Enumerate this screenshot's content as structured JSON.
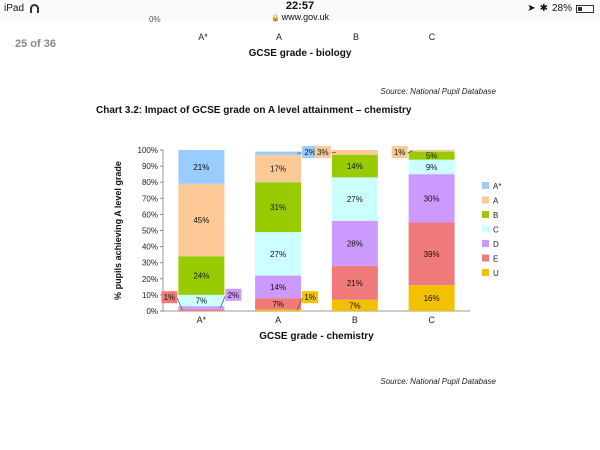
{
  "status_bar": {
    "device": "iPad",
    "time": "22:57",
    "url": "www.gov.uk",
    "battery": "28%",
    "battery_level": 0.28
  },
  "page_counter": "25 of 36",
  "previous_chart": {
    "cut_tick": "0%",
    "categories": [
      "A*",
      "A",
      "B",
      "C"
    ],
    "xlabel": "GCSE grade - biology",
    "source": "Source: National Pupil Database"
  },
  "chart_title": "Chart 3.2: Impact of GCSE grade on A level attainment – chemistry",
  "source": "Source: National Pupil Database",
  "chart_data": {
    "type": "bar",
    "stacked": true,
    "title": "Chart 3.2: Impact of GCSE grade on A level attainment – chemistry",
    "xlabel": "GCSE grade - chemistry",
    "ylabel": "% pupils achieving A level grade",
    "categories": [
      "A*",
      "A",
      "B",
      "C"
    ],
    "ylim": [
      0,
      100
    ],
    "yticks": [
      "0%",
      "10%",
      "20%",
      "30%",
      "40%",
      "50%",
      "60%",
      "70%",
      "80%",
      "90%",
      "100%"
    ],
    "legend_position": "right",
    "series": [
      {
        "name": "U",
        "color": "#f2c200",
        "values": [
          0,
          1,
          7,
          16
        ],
        "labels": [
          "",
          "1%",
          "7%",
          "16%"
        ]
      },
      {
        "name": "E",
        "color": "#f07a7a",
        "values": [
          1,
          7,
          21,
          39
        ],
        "labels": [
          "1%",
          "7%",
          "21%",
          "39%"
        ]
      },
      {
        "name": "D",
        "color": "#cc99ff",
        "values": [
          2,
          14,
          28,
          30
        ],
        "labels": [
          "2%",
          "14%",
          "28%",
          "30%"
        ]
      },
      {
        "name": "C",
        "color": "#ccffff",
        "values": [
          7,
          27,
          27,
          9
        ],
        "labels": [
          "7%",
          "27%",
          "27%",
          "9%"
        ]
      },
      {
        "name": "B",
        "color": "#99cc00",
        "values": [
          24,
          31,
          14,
          5
        ],
        "labels": [
          "24%",
          "31%",
          "14%",
          "5%"
        ]
      },
      {
        "name": "A",
        "color": "#fcc997",
        "values": [
          45,
          17,
          3,
          1
        ],
        "labels": [
          "45%",
          "17%",
          "3%",
          "1%"
        ]
      },
      {
        "name": "A*",
        "color": "#99ccff",
        "values": [
          21,
          2,
          0,
          0
        ],
        "labels": [
          "21%",
          "2%",
          "",
          ""
        ]
      }
    ],
    "legend_order": [
      "A*",
      "A",
      "B",
      "C",
      "D",
      "E",
      "U"
    ]
  }
}
